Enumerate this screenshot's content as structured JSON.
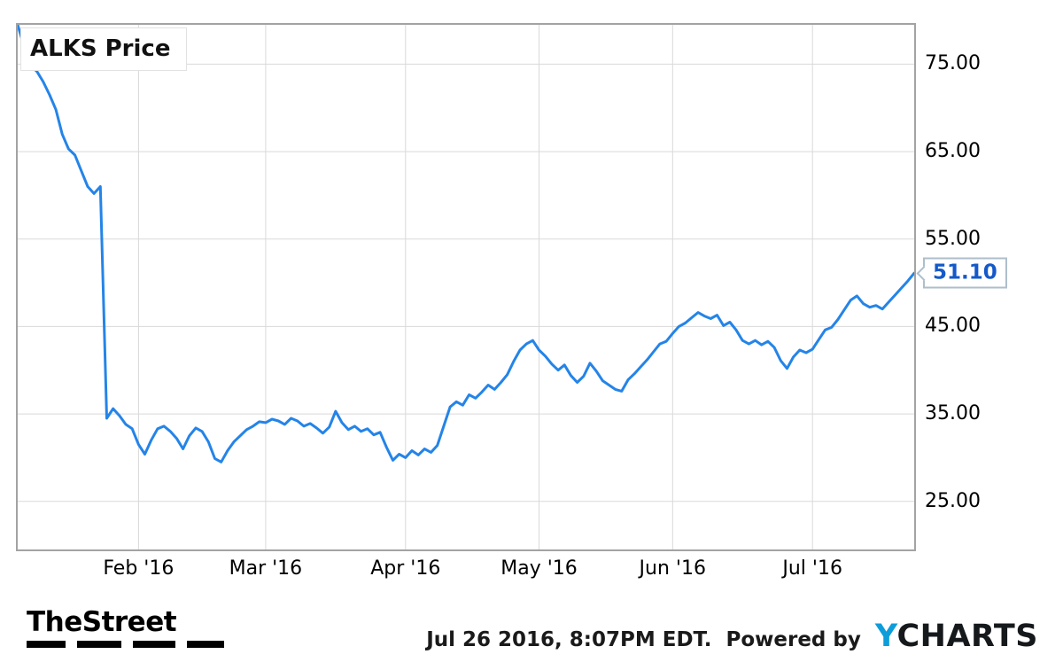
{
  "chart": {
    "title": "ALKS Price",
    "last_price_label": "51.10",
    "line_color": "#2484e8",
    "callout_color": "#1459c9",
    "grid_color": "#d9d9d9"
  },
  "chart_data": {
    "type": "line",
    "title": "ALKS Price",
    "series_name": "ALKS Price",
    "x_unit": "trading days, Jan 4 2016 - Jul 26 2016",
    "y_range": [
      19.5,
      79.5
    ],
    "y_ticks": [
      25,
      35,
      45,
      55,
      65,
      75
    ],
    "x_ticks": [
      {
        "label": "Feb '16",
        "index": 19
      },
      {
        "label": "Mar '16",
        "index": 39
      },
      {
        "label": "Apr '16",
        "index": 61
      },
      {
        "label": "May '16",
        "index": 82
      },
      {
        "label": "Jun '16",
        "index": 103
      },
      {
        "label": "Jul '16",
        "index": 125
      }
    ],
    "grid": true,
    "legend_position": "none",
    "last_price": 51.1,
    "values": [
      79.5,
      77.0,
      74.8,
      74.2,
      73.0,
      71.5,
      69.8,
      67.0,
      65.3,
      64.6,
      62.8,
      61.0,
      60.2,
      61.0,
      34.5,
      35.6,
      34.8,
      33.8,
      33.3,
      31.5,
      30.4,
      32.0,
      33.3,
      33.6,
      33.0,
      32.2,
      31.0,
      32.5,
      33.4,
      33.0,
      31.8,
      29.9,
      29.5,
      30.8,
      31.8,
      32.5,
      33.2,
      33.6,
      34.1,
      34.0,
      34.4,
      34.2,
      33.8,
      34.5,
      34.2,
      33.6,
      33.9,
      33.4,
      32.8,
      33.5,
      35.3,
      34.0,
      33.2,
      33.6,
      33.0,
      33.3,
      32.6,
      32.9,
      31.2,
      29.7,
      30.4,
      30.0,
      30.8,
      30.3,
      31.0,
      30.6,
      31.4,
      33.6,
      35.8,
      36.4,
      36.0,
      37.2,
      36.8,
      37.5,
      38.3,
      37.8,
      38.6,
      39.5,
      41.0,
      42.3,
      43.0,
      43.4,
      42.3,
      41.6,
      40.7,
      40.0,
      40.6,
      39.4,
      38.6,
      39.3,
      40.8,
      39.9,
      38.8,
      38.3,
      37.8,
      37.6,
      38.9,
      39.6,
      40.4,
      41.2,
      42.1,
      43.0,
      43.3,
      44.2,
      45.0,
      45.4,
      46.0,
      46.6,
      46.2,
      45.9,
      46.3,
      45.1,
      45.5,
      44.6,
      43.4,
      43.0,
      43.4,
      42.9,
      43.3,
      42.6,
      41.1,
      40.2,
      41.5,
      42.3,
      42.0,
      42.4,
      43.5,
      44.6,
      44.9,
      45.8,
      46.9,
      48.0,
      48.5,
      47.6,
      47.2,
      47.4,
      47.0,
      47.8,
      48.6,
      49.4,
      50.2,
      51.1
    ]
  },
  "footer": {
    "brand": "TheStreet",
    "timestamp": "Jul 26 2016, 8:07PM EDT.",
    "powered_by": "Powered by",
    "logo": {
      "y": "Y",
      "charts": "CHARTS",
      "y_color": "#0d9ddb",
      "charts_color": "#16191c"
    }
  }
}
